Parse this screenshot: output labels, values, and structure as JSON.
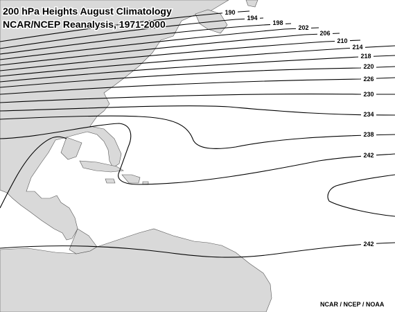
{
  "title": {
    "line1": "200 hPa Heights August Climatology",
    "line2": "NCAR/NCEP Reanalysis, 1971-2000"
  },
  "credit": "NCAR / NCEP / NOAA",
  "colors": {
    "land": "#d9d9d9",
    "coast": "#555555",
    "contour": "#000000",
    "background": "#ffffff"
  },
  "contour_labels": [
    "190",
    "194",
    "198",
    "202",
    "206",
    "210",
    "214",
    "218",
    "220",
    "226",
    "230",
    "234",
    "238",
    "242",
    "242"
  ]
}
